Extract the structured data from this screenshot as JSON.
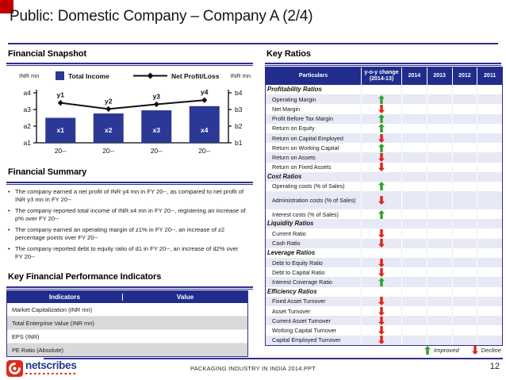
{
  "title": "Public: Domestic Company – Company A (2/4)",
  "colors": {
    "navy_line": "#2E3192",
    "navy_fill": "#202D8C",
    "bar_blue": "#2B3896",
    "stripe_gray": "#D9D9D9",
    "stripe_blue": "#E7EAF4",
    "improved_green": "#2FA12C",
    "decline_red": "#E02418",
    "corner_red": "#C00000"
  },
  "sections": {
    "financial_snapshot": "Financial Snapshot",
    "financial_summary": "Financial Summary",
    "kfpi": "Key Financial Performance Indicators",
    "key_ratios": "Key Ratios"
  },
  "chart_data": {
    "type": "bar+line",
    "title": "",
    "left_axis_label": "INR mn",
    "right_axis_label": "INR mn",
    "left_tick_labels": [
      "a1",
      "a2",
      "a3",
      "a4"
    ],
    "right_tick_labels": [
      "b1",
      "b2",
      "b3",
      "b4"
    ],
    "ylim": [
      1,
      4
    ],
    "categories": [
      "20--",
      "20--",
      "20--",
      "20--"
    ],
    "grid": false,
    "legend_position": "top",
    "series": [
      {
        "name": "Total Income",
        "type": "bar",
        "color": "#2B3896",
        "point_labels": [
          "x1",
          "x2",
          "x3",
          "x4"
        ],
        "values": [
          2.5,
          2.76,
          2.95,
          3.2
        ]
      },
      {
        "name": "Net Profit/Loss",
        "type": "line",
        "color": "#111111",
        "point_labels": [
          "y1",
          "y2",
          "y3",
          "y4"
        ],
        "values": [
          3.4,
          3.03,
          3.31,
          3.56
        ]
      }
    ]
  },
  "summary_bullets": [
    "The company earned a net profit of INR y4 mn in FY 20--, as compared to net profit of INR y3 mn in FY 20--",
    "The company reported total income of INR x4 mn in FY 20--, registering an increase of p% over FY 20--",
    "The company earned an operating margin of z1% in FY 20--, an increase of z2 percentage points over FY 20--",
    "The company reported debt to equity ratio of d1 in FY 20--, an increase of d2% over FY 20--"
  ],
  "kfpi_table": {
    "headers": [
      "Indicators",
      "Value"
    ],
    "rows": [
      {
        "indicator": "Market Capitalization (INR mn)",
        "value": ""
      },
      {
        "indicator": "Total Enterprise Value (INR mn)",
        "value": ""
      },
      {
        "indicator": "EPS (INR)",
        "value": ""
      },
      {
        "indicator": "PE Ratio (Absolute)",
        "value": ""
      }
    ]
  },
  "key_ratios_table": {
    "headers": [
      "Particulars",
      "y-o-y change",
      "(2014-13)",
      "2014",
      "2013",
      "2012",
      "2011"
    ],
    "rows": [
      {
        "label": "Profitability Ratios",
        "type": "section"
      },
      {
        "label": "Operating Margin",
        "type": "data",
        "arrow": "up"
      },
      {
        "label": "Net Margin",
        "type": "data",
        "arrow": "down"
      },
      {
        "label": "Profit Before Tax Margin",
        "type": "data",
        "arrow": "up"
      },
      {
        "label": "Return on Equity",
        "type": "data",
        "arrow": "up"
      },
      {
        "label": "Return on Capital Employed",
        "type": "data",
        "arrow": "down"
      },
      {
        "label": "Return on Working Capital",
        "type": "data",
        "arrow": "up"
      },
      {
        "label": "Return on Assets",
        "type": "data",
        "arrow": "down"
      },
      {
        "label": "Return on Fixed Assets",
        "type": "data",
        "arrow": "down"
      },
      {
        "label": "Cost Ratios",
        "type": "section"
      },
      {
        "label": "Operating costs (% of Sales)",
        "type": "data",
        "arrow": "up"
      },
      {
        "label": "Administration costs (% of Sales)",
        "type": "data",
        "arrow": "down",
        "tall": true
      },
      {
        "label": "Interest costs (% of Sales)",
        "type": "data",
        "arrow": "up"
      },
      {
        "label": "Liquidity Ratios",
        "type": "section"
      },
      {
        "label": "Current Ratio",
        "type": "data",
        "arrow": "down"
      },
      {
        "label": "Cash Ratio",
        "type": "data",
        "arrow": "down"
      },
      {
        "label": "Leverage Ratios",
        "type": "section"
      },
      {
        "label": "Debt to Equity Ratio",
        "type": "data",
        "arrow": "down"
      },
      {
        "label": "Debt to Capital Ratio",
        "type": "data",
        "arrow": "down"
      },
      {
        "label": "Interest Coverage Ratio",
        "type": "data",
        "arrow": "up"
      },
      {
        "label": "Efficiency Ratios",
        "type": "section"
      },
      {
        "label": "Fixed Asset Turnover",
        "type": "data",
        "arrow": "down"
      },
      {
        "label": "Asset Turnover",
        "type": "data",
        "arrow": "down"
      },
      {
        "label": "Current Asset Turnover",
        "type": "data",
        "arrow": "down"
      },
      {
        "label": "Working Capital Turnover",
        "type": "data",
        "arrow": "down"
      },
      {
        "label": "Capital Employed Turnover",
        "type": "data",
        "arrow": "down"
      }
    ],
    "legend": [
      {
        "arrow": "up",
        "label": "Improved"
      },
      {
        "arrow": "down",
        "label": "Decline"
      }
    ]
  },
  "footer": {
    "logo_text": "netscribes",
    "center_text": "PACKAGING INDUSTRY IN INDIA 2014.PPT",
    "page_number": "12"
  }
}
